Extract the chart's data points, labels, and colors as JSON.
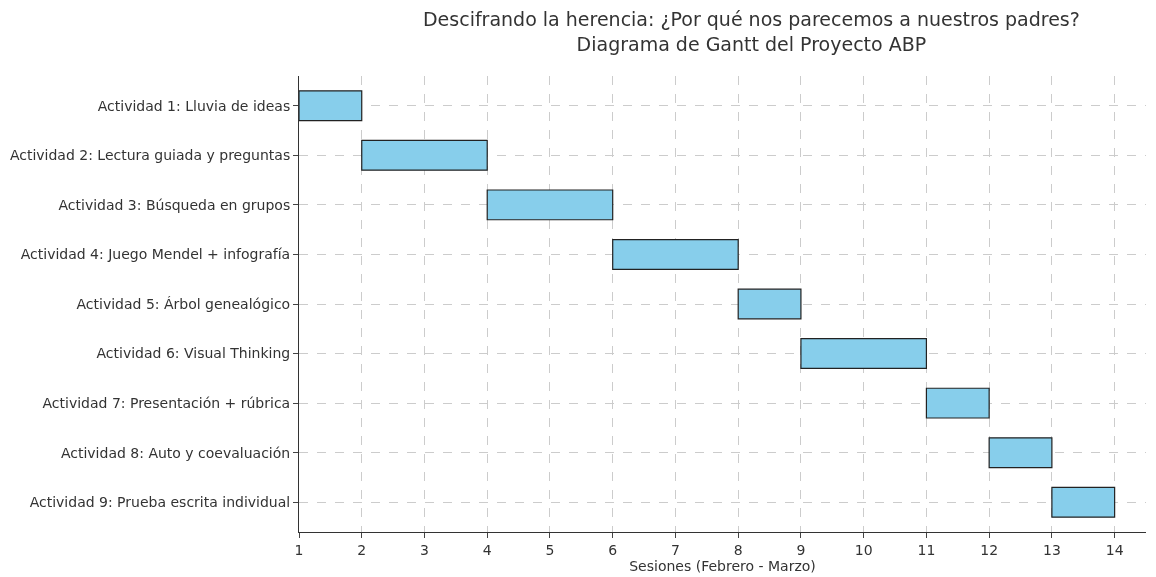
{
  "chart_data": {
    "type": "bar",
    "orientation": "horizontal",
    "title": "Descifrando la herencia: ¿Por qué nos parecemos a nuestros padres?\nDiagrama de Gantt del Proyecto ABP",
    "xlabel": "Sesiones (Febrero - Marzo)",
    "categories": [
      "Actividad 1: Lluvia de ideas",
      "Actividad 2: Lectura guiada y preguntas",
      "Actividad 3: Búsqueda en grupos",
      "Actividad 4: Juego Mendel + infografía",
      "Actividad 5: Árbol genealógico",
      "Actividad 6: Visual Thinking",
      "Actividad 7: Presentación + rúbrica",
      "Actividad 8: Auto y coevaluación",
      "Actividad 9: Prueba escrita individual"
    ],
    "base": [
      1,
      2,
      4,
      6,
      8,
      9,
      11,
      12,
      13
    ],
    "values": [
      1,
      2,
      2,
      2,
      1,
      2,
      1,
      1,
      1
    ],
    "color": "#87ceeb",
    "xlim": [
      1,
      14.5
    ],
    "xticks": [
      1,
      2,
      3,
      4,
      5,
      6,
      7,
      8,
      9,
      10,
      11,
      12,
      13,
      14
    ],
    "grid": true
  }
}
